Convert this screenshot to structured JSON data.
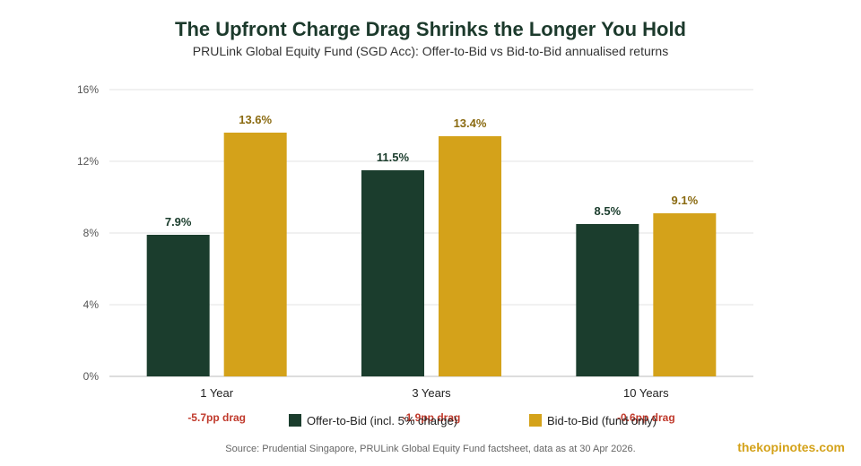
{
  "chart_data": {
    "type": "bar",
    "title": "The Upfront Charge Drag Shrinks the Longer You Hold",
    "subtitle": "PRULink Global Equity Fund (SGD Acc): Offer-to-Bid vs Bid-to-Bid annualised returns",
    "categories": [
      "1 Year",
      "3 Years",
      "10 Years"
    ],
    "series": [
      {
        "name": "Offer-to-Bid (incl. 5% charge)",
        "color": "#1b3d2d",
        "values": [
          7.9,
          11.5,
          8.5
        ],
        "labels": [
          "7.9%",
          "11.5%",
          "8.5%"
        ]
      },
      {
        "name": "Bid-to-Bid (fund only)",
        "color": "#d4a21a",
        "values": [
          13.6,
          13.4,
          9.1
        ],
        "labels": [
          "13.6%",
          "13.4%",
          "9.1%"
        ]
      }
    ],
    "annotations": [
      "-5.7pp drag",
      "-1.9pp drag",
      "-0.6pp drag"
    ],
    "annotation_color": "#c0392b",
    "label_colors": [
      "#1b3d2d",
      "#8a6a10"
    ],
    "ylim": [
      0,
      16
    ],
    "yticks": [
      0,
      4,
      8,
      12,
      16
    ],
    "ytick_labels": [
      "0%",
      "4%",
      "8%",
      "12%",
      "16%"
    ],
    "xlabel": "",
    "ylabel": "",
    "grid": true,
    "legend_position": "bottom"
  },
  "footer": {
    "source": "Source: Prudential Singapore, PRULink Global Equity Fund factsheet, data as at 30 Apr 2026.",
    "watermark": "thekopinotes.com"
  }
}
